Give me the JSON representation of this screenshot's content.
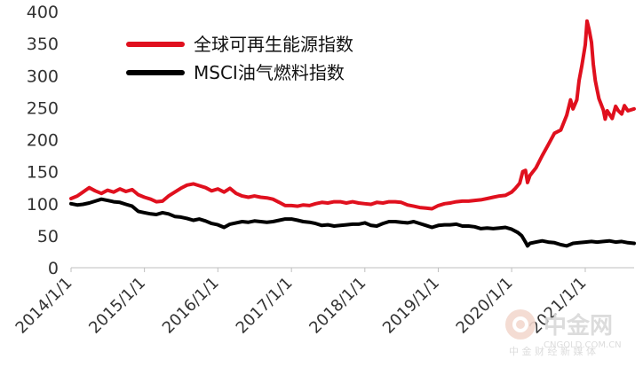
{
  "chart_data": {
    "type": "line",
    "title": "",
    "xlabel": "",
    "ylabel": "",
    "ylim": [
      0,
      400
    ],
    "yticks": [
      0,
      50,
      100,
      150,
      200,
      250,
      300,
      350,
      400
    ],
    "x_range": [
      "2014-01-01",
      "2021-09-01"
    ],
    "xtick_labels": [
      "2014/1/1",
      "2015/1/1",
      "2016/1/1",
      "2017/1/1",
      "2018/1/1",
      "2019/1/1",
      "2020/1/1",
      "2021/1/1"
    ],
    "grid": false,
    "legend_position": "top-left",
    "series": [
      {
        "name": "全球可再生能源指数",
        "color": "#e0101e",
        "points": [
          [
            "2014-01-01",
            108
          ],
          [
            "2014-02-01",
            112
          ],
          [
            "2014-03-01",
            118
          ],
          [
            "2014-04-01",
            125
          ],
          [
            "2014-05-01",
            120
          ],
          [
            "2014-06-01",
            116
          ],
          [
            "2014-07-01",
            121
          ],
          [
            "2014-08-01",
            118
          ],
          [
            "2014-09-01",
            123
          ],
          [
            "2014-10-01",
            119
          ],
          [
            "2014-11-01",
            122
          ],
          [
            "2014-12-01",
            114
          ],
          [
            "2015-01-01",
            110
          ],
          [
            "2015-02-01",
            107
          ],
          [
            "2015-03-01",
            103
          ],
          [
            "2015-04-01",
            104
          ],
          [
            "2015-05-01",
            112
          ],
          [
            "2015-06-01",
            118
          ],
          [
            "2015-07-01",
            124
          ],
          [
            "2015-08-01",
            129
          ],
          [
            "2015-09-01",
            131
          ],
          [
            "2015-10-01",
            128
          ],
          [
            "2015-11-01",
            125
          ],
          [
            "2015-12-01",
            120
          ],
          [
            "2016-01-01",
            123
          ],
          [
            "2016-02-01",
            118
          ],
          [
            "2016-03-01",
            124
          ],
          [
            "2016-04-01",
            116
          ],
          [
            "2016-05-01",
            112
          ],
          [
            "2016-06-01",
            110
          ],
          [
            "2016-07-01",
            112
          ],
          [
            "2016-08-01",
            110
          ],
          [
            "2016-09-01",
            109
          ],
          [
            "2016-10-01",
            107
          ],
          [
            "2016-11-01",
            102
          ],
          [
            "2016-12-01",
            97
          ],
          [
            "2017-01-01",
            97
          ],
          [
            "2017-02-01",
            96
          ],
          [
            "2017-03-01",
            98
          ],
          [
            "2017-04-01",
            97
          ],
          [
            "2017-05-01",
            100
          ],
          [
            "2017-06-01",
            102
          ],
          [
            "2017-07-01",
            101
          ],
          [
            "2017-08-01",
            103
          ],
          [
            "2017-09-01",
            103
          ],
          [
            "2017-10-01",
            101
          ],
          [
            "2017-11-01",
            103
          ],
          [
            "2017-12-01",
            101
          ],
          [
            "2018-01-01",
            100
          ],
          [
            "2018-02-01",
            99
          ],
          [
            "2018-03-01",
            102
          ],
          [
            "2018-04-01",
            101
          ],
          [
            "2018-05-01",
            103
          ],
          [
            "2018-06-01",
            103
          ],
          [
            "2018-07-01",
            102
          ],
          [
            "2018-08-01",
            98
          ],
          [
            "2018-09-01",
            96
          ],
          [
            "2018-10-01",
            94
          ],
          [
            "2018-11-01",
            93
          ],
          [
            "2018-12-01",
            92
          ],
          [
            "2019-01-01",
            97
          ],
          [
            "2019-02-01",
            100
          ],
          [
            "2019-03-01",
            101
          ],
          [
            "2019-04-01",
            103
          ],
          [
            "2019-05-01",
            104
          ],
          [
            "2019-06-01",
            104
          ],
          [
            "2019-07-01",
            105
          ],
          [
            "2019-08-01",
            106
          ],
          [
            "2019-09-01",
            108
          ],
          [
            "2019-10-01",
            110
          ],
          [
            "2019-11-01",
            112
          ],
          [
            "2019-12-01",
            113
          ],
          [
            "2020-01-01",
            118
          ],
          [
            "2020-01-20",
            124
          ],
          [
            "2020-02-10",
            132
          ],
          [
            "2020-02-25",
            150
          ],
          [
            "2020-03-10",
            152
          ],
          [
            "2020-03-20",
            133
          ],
          [
            "2020-04-01",
            144
          ],
          [
            "2020-05-01",
            156
          ],
          [
            "2020-06-01",
            175
          ],
          [
            "2020-07-01",
            192
          ],
          [
            "2020-08-01",
            210
          ],
          [
            "2020-09-01",
            215
          ],
          [
            "2020-10-01",
            238
          ],
          [
            "2020-10-20",
            262
          ],
          [
            "2020-11-01",
            248
          ],
          [
            "2020-11-20",
            262
          ],
          [
            "2020-12-01",
            292
          ],
          [
            "2020-12-15",
            315
          ],
          [
            "2021-01-01",
            348
          ],
          [
            "2021-01-10",
            385
          ],
          [
            "2021-01-20",
            372
          ],
          [
            "2021-02-01",
            352
          ],
          [
            "2021-02-10",
            318
          ],
          [
            "2021-02-20",
            292
          ],
          [
            "2021-03-01",
            278
          ],
          [
            "2021-03-10",
            264
          ],
          [
            "2021-03-20",
            256
          ],
          [
            "2021-04-01",
            246
          ],
          [
            "2021-04-10",
            232
          ],
          [
            "2021-04-20",
            245
          ],
          [
            "2021-05-01",
            240
          ],
          [
            "2021-05-15",
            233
          ],
          [
            "2021-06-01",
            252
          ],
          [
            "2021-06-15",
            245
          ],
          [
            "2021-07-01",
            240
          ],
          [
            "2021-07-15",
            253
          ],
          [
            "2021-08-01",
            245
          ],
          [
            "2021-09-01",
            248
          ]
        ]
      },
      {
        "name": "MSCI油气燃料指数",
        "color": "#000000",
        "points": [
          [
            "2014-01-01",
            100
          ],
          [
            "2014-02-01",
            98
          ],
          [
            "2014-03-01",
            99
          ],
          [
            "2014-04-01",
            101
          ],
          [
            "2014-05-01",
            104
          ],
          [
            "2014-06-01",
            107
          ],
          [
            "2014-07-01",
            105
          ],
          [
            "2014-08-01",
            103
          ],
          [
            "2014-09-01",
            102
          ],
          [
            "2014-10-01",
            99
          ],
          [
            "2014-11-01",
            96
          ],
          [
            "2014-12-01",
            88
          ],
          [
            "2015-01-01",
            86
          ],
          [
            "2015-02-01",
            84
          ],
          [
            "2015-03-01",
            83
          ],
          [
            "2015-04-01",
            86
          ],
          [
            "2015-05-01",
            84
          ],
          [
            "2015-06-01",
            80
          ],
          [
            "2015-07-01",
            79
          ],
          [
            "2015-08-01",
            77
          ],
          [
            "2015-09-01",
            74
          ],
          [
            "2015-10-01",
            76
          ],
          [
            "2015-11-01",
            73
          ],
          [
            "2015-12-01",
            69
          ],
          [
            "2016-01-01",
            67
          ],
          [
            "2016-02-01",
            63
          ],
          [
            "2016-03-01",
            68
          ],
          [
            "2016-04-01",
            70
          ],
          [
            "2016-05-01",
            72
          ],
          [
            "2016-06-01",
            71
          ],
          [
            "2016-07-01",
            73
          ],
          [
            "2016-08-01",
            72
          ],
          [
            "2016-09-01",
            71
          ],
          [
            "2016-10-01",
            72
          ],
          [
            "2016-11-01",
            74
          ],
          [
            "2016-12-01",
            76
          ],
          [
            "2017-01-01",
            76
          ],
          [
            "2017-02-01",
            74
          ],
          [
            "2017-03-01",
            72
          ],
          [
            "2017-04-01",
            71
          ],
          [
            "2017-05-01",
            69
          ],
          [
            "2017-06-01",
            66
          ],
          [
            "2017-07-01",
            67
          ],
          [
            "2017-08-01",
            65
          ],
          [
            "2017-09-01",
            66
          ],
          [
            "2017-10-01",
            67
          ],
          [
            "2017-11-01",
            68
          ],
          [
            "2017-12-01",
            68
          ],
          [
            "2018-01-01",
            70
          ],
          [
            "2018-02-01",
            66
          ],
          [
            "2018-03-01",
            65
          ],
          [
            "2018-04-01",
            69
          ],
          [
            "2018-05-01",
            72
          ],
          [
            "2018-06-01",
            72
          ],
          [
            "2018-07-01",
            71
          ],
          [
            "2018-08-01",
            70
          ],
          [
            "2018-09-01",
            72
          ],
          [
            "2018-10-01",
            69
          ],
          [
            "2018-11-01",
            66
          ],
          [
            "2018-12-01",
            63
          ],
          [
            "2019-01-01",
            66
          ],
          [
            "2019-02-01",
            67
          ],
          [
            "2019-03-01",
            67
          ],
          [
            "2019-04-01",
            68
          ],
          [
            "2019-05-01",
            65
          ],
          [
            "2019-06-01",
            65
          ],
          [
            "2019-07-01",
            64
          ],
          [
            "2019-08-01",
            61
          ],
          [
            "2019-09-01",
            62
          ],
          [
            "2019-10-01",
            61
          ],
          [
            "2019-11-01",
            62
          ],
          [
            "2019-12-01",
            63
          ],
          [
            "2020-01-01",
            60
          ],
          [
            "2020-02-01",
            55
          ],
          [
            "2020-02-20",
            50
          ],
          [
            "2020-03-10",
            40
          ],
          [
            "2020-03-20",
            34
          ],
          [
            "2020-04-01",
            38
          ],
          [
            "2020-05-01",
            40
          ],
          [
            "2020-06-01",
            42
          ],
          [
            "2020-07-01",
            40
          ],
          [
            "2020-08-01",
            39
          ],
          [
            "2020-09-01",
            36
          ],
          [
            "2020-10-01",
            34
          ],
          [
            "2020-11-01",
            38
          ],
          [
            "2020-12-01",
            39
          ],
          [
            "2021-01-01",
            40
          ],
          [
            "2021-02-01",
            41
          ],
          [
            "2021-03-01",
            40
          ],
          [
            "2021-04-01",
            41
          ],
          [
            "2021-05-01",
            42
          ],
          [
            "2021-06-01",
            40
          ],
          [
            "2021-07-01",
            41
          ],
          [
            "2021-08-01",
            39
          ],
          [
            "2021-09-01",
            38
          ]
        ]
      }
    ]
  },
  "watermark": {
    "brand": "中金网",
    "url": "CNGOLD.COM.CN",
    "tagline": "中 金 财 经 新 媒 体"
  }
}
